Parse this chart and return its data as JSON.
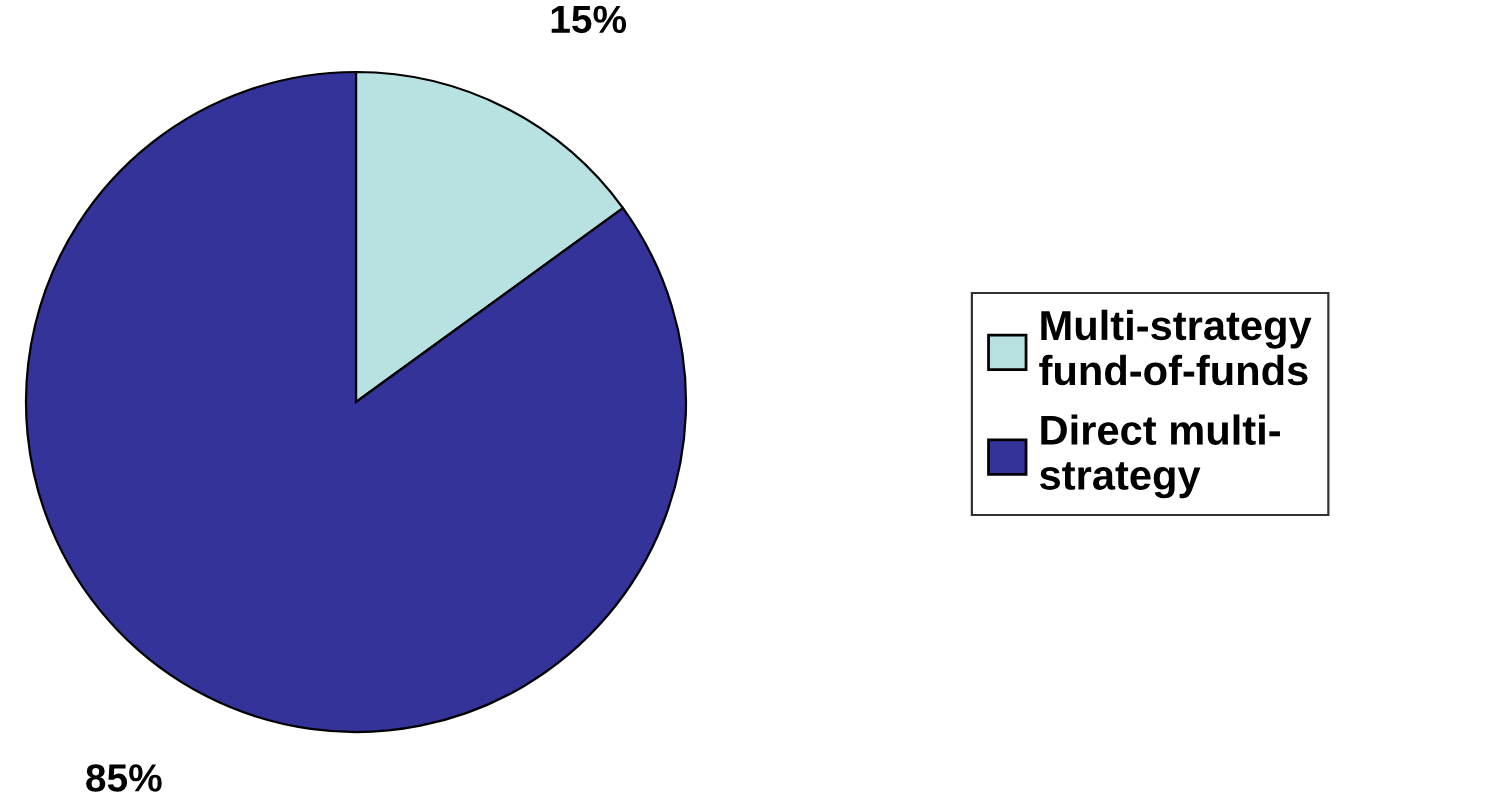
{
  "chart_data": {
    "type": "pie",
    "categories": [
      "Multi-strategy fund-of-funds",
      "Direct multi-strategy"
    ],
    "values": [
      15,
      85
    ],
    "colors": [
      "#b8e2e2",
      "#333399"
    ],
    "value_labels": [
      "15%",
      "85%"
    ],
    "legend": "right"
  }
}
